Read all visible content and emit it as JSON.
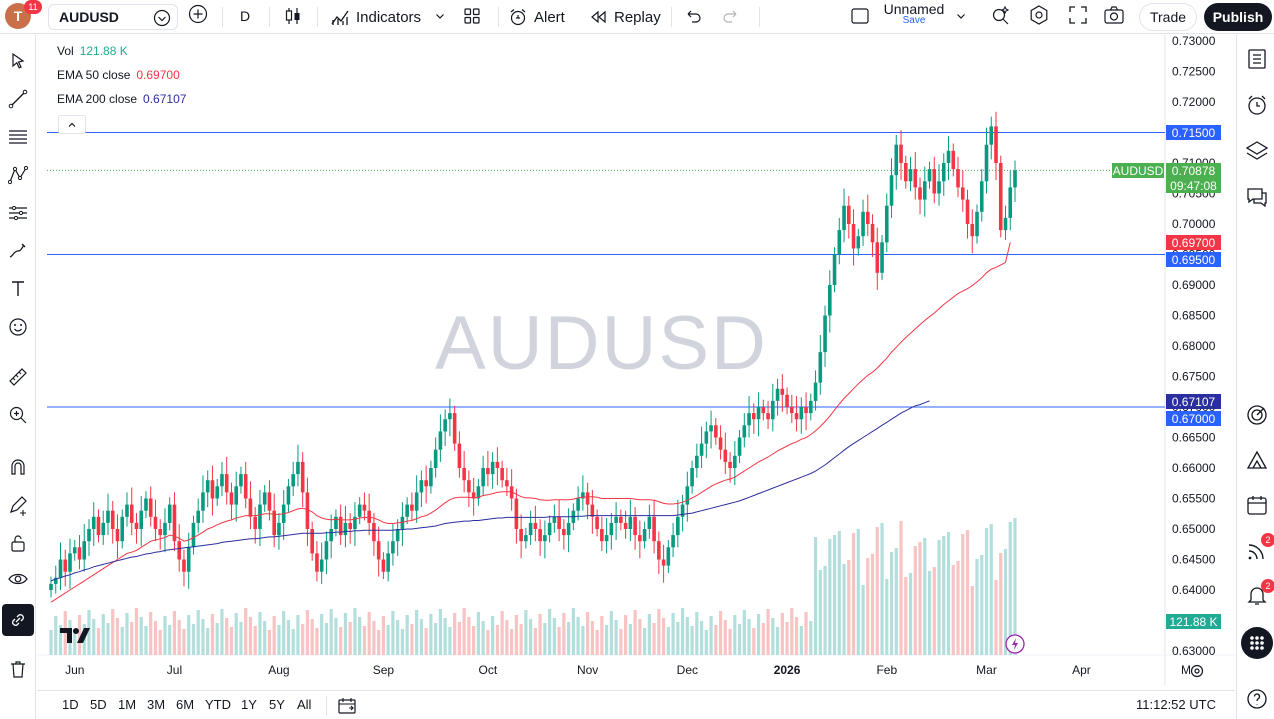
{
  "topbar": {
    "avatar_letter": "T",
    "avatar_badge": "11",
    "symbol": "AUDUSD",
    "interval": "D",
    "indicators_label": "Indicators",
    "alert_label": "Alert",
    "replay_label": "Replay",
    "layout_name": "Unnamed",
    "layout_save": "Save",
    "trade_label": "Trade",
    "publish_label": "Publish"
  },
  "legend": {
    "vol_label": "Vol",
    "vol_value": "121.88 K",
    "ema50_label": "EMA 50 close",
    "ema50_value": "0.69700",
    "ema200_label": "EMA 200 close",
    "ema200_value": "0.67107"
  },
  "watermark": "AUDUSD",
  "price_labels": {
    "symbol_tag": "AUDUSD",
    "last": "0.70878",
    "countdown": "09:47:08",
    "line_top": "0.71500",
    "ema50": "0.69700",
    "line_mid": "0.69500",
    "ema200": "0.67107",
    "line_low": "0.67000",
    "volume": "121.88 K"
  },
  "right_badges": {
    "news": "2",
    "alerts": "2"
  },
  "bottombar": {
    "ranges": [
      "1D",
      "5D",
      "1M",
      "3M",
      "6M",
      "YTD",
      "1Y",
      "5Y",
      "All"
    ],
    "time": "11:12:52 UTC"
  },
  "colors": {
    "up": "#089981",
    "down": "#f23645",
    "ema50": "#f23645",
    "ema200": "#2a2e9e",
    "hline": "#2962ff",
    "vol_up": "#b2dfdb",
    "vol_down": "#f7c3c3"
  },
  "chart_data": {
    "type": "candlestick",
    "x_tick_labels": [
      "Jun",
      "Jul",
      "Aug",
      "Sep",
      "Oct",
      "Nov",
      "Dec",
      "2026",
      "Feb",
      "Mar",
      "Apr",
      "M"
    ],
    "y_tick_labels": [
      "0.73000",
      "0.72500",
      "0.72000",
      "0.71500",
      "0.71000",
      "0.70500",
      "0.70000",
      "0.69500",
      "0.69000",
      "0.68500",
      "0.68000",
      "0.67500",
      "0.67000",
      "0.66500",
      "0.66000",
      "0.65500",
      "0.65000",
      "0.64500",
      "0.64000",
      "0.63500",
      "0.63000"
    ],
    "ylim": [
      0.63,
      0.73
    ],
    "horizontal_lines": [
      0.715,
      0.695,
      0.67
    ],
    "close_series": [
      0.641,
      0.642,
      0.645,
      0.643,
      0.646,
      0.647,
      0.645,
      0.648,
      0.65,
      0.652,
      0.649,
      0.651,
      0.653,
      0.65,
      0.648,
      0.652,
      0.654,
      0.651,
      0.65,
      0.653,
      0.655,
      0.652,
      0.65,
      0.649,
      0.651,
      0.654,
      0.648,
      0.645,
      0.643,
      0.647,
      0.651,
      0.653,
      0.656,
      0.658,
      0.655,
      0.657,
      0.659,
      0.656,
      0.654,
      0.657,
      0.659,
      0.655,
      0.652,
      0.65,
      0.654,
      0.656,
      0.653,
      0.649,
      0.651,
      0.654,
      0.657,
      0.659,
      0.661,
      0.656,
      0.65,
      0.646,
      0.643,
      0.645,
      0.648,
      0.65,
      0.652,
      0.649,
      0.651,
      0.65,
      0.652,
      0.654,
      0.653,
      0.651,
      0.648,
      0.645,
      0.643,
      0.646,
      0.648,
      0.65,
      0.652,
      0.654,
      0.653,
      0.656,
      0.658,
      0.657,
      0.66,
      0.663,
      0.666,
      0.668,
      0.669,
      0.664,
      0.66,
      0.658,
      0.656,
      0.655,
      0.657,
      0.66,
      0.659,
      0.661,
      0.66,
      0.658,
      0.657,
      0.655,
      0.65,
      0.648,
      0.649,
      0.651,
      0.65,
      0.648,
      0.649,
      0.651,
      0.652,
      0.65,
      0.649,
      0.651,
      0.653,
      0.655,
      0.656,
      0.654,
      0.652,
      0.65,
      0.648,
      0.649,
      0.651,
      0.652,
      0.651,
      0.65,
      0.652,
      0.649,
      0.648,
      0.65,
      0.652,
      0.648,
      0.645,
      0.644,
      0.647,
      0.649,
      0.652,
      0.654,
      0.657,
      0.66,
      0.662,
      0.664,
      0.666,
      0.667,
      0.665,
      0.663,
      0.661,
      0.66,
      0.662,
      0.665,
      0.667,
      0.669,
      0.668,
      0.67,
      0.669,
      0.668,
      0.671,
      0.673,
      0.672,
      0.67,
      0.669,
      0.668,
      0.67,
      0.669,
      0.671,
      0.674,
      0.679,
      0.685,
      0.69,
      0.695,
      0.699,
      0.703,
      0.7,
      0.696,
      0.698,
      0.702,
      0.7,
      0.697,
      0.692,
      0.697,
      0.703,
      0.708,
      0.713,
      0.71,
      0.707,
      0.709,
      0.706,
      0.704,
      0.707,
      0.709,
      0.705,
      0.707,
      0.71,
      0.712,
      0.709,
      0.706,
      0.704,
      0.7,
      0.698,
      0.702,
      0.707,
      0.713,
      0.716,
      0.71,
      0.699,
      0.701,
      0.706,
      0.7088
    ],
    "ema50_series": [
      0.638,
      0.6385,
      0.639,
      0.6395,
      0.64,
      0.6405,
      0.641,
      0.6415,
      0.642,
      0.6425,
      0.643,
      0.6435,
      0.644,
      0.6445,
      0.645,
      0.6455,
      0.646,
      0.6462,
      0.6465,
      0.647,
      0.6475,
      0.648,
      0.6482,
      0.6484,
      0.6486,
      0.649,
      0.6488,
      0.6485,
      0.648,
      0.6482,
      0.6486,
      0.649,
      0.6495,
      0.65,
      0.6503,
      0.6507,
      0.651,
      0.6513,
      0.6515,
      0.6518,
      0.652,
      0.6522,
      0.6522,
      0.6522,
      0.6523,
      0.6525,
      0.6525,
      0.6524,
      0.6524,
      0.6525,
      0.6527,
      0.653,
      0.6533,
      0.6534,
      0.6532,
      0.6528,
      0.6522,
      0.6518,
      0.6516,
      0.6515,
      0.6516,
      0.6515,
      0.6515,
      0.6515,
      0.6516,
      0.6518,
      0.6519,
      0.6519,
      0.6518,
      0.6515,
      0.6511,
      0.6509,
      0.6509,
      0.651,
      0.6511,
      0.6513,
      0.6514,
      0.6517,
      0.652,
      0.6522,
      0.6526,
      0.6531,
      0.6537,
      0.6543,
      0.6548,
      0.6551,
      0.6552,
      0.6552,
      0.6552,
      0.6551,
      0.6552,
      0.6555,
      0.6556,
      0.6558,
      0.656,
      0.6561,
      0.6561,
      0.6561,
      0.6557,
      0.6553,
      0.6551,
      0.6551,
      0.655,
      0.6548,
      0.6547,
      0.6547,
      0.6548,
      0.6548,
      0.6548,
      0.6548,
      0.6549,
      0.6551,
      0.6552,
      0.6553,
      0.6553,
      0.6552,
      0.655,
      0.655,
      0.655,
      0.655,
      0.655,
      0.655,
      0.655,
      0.6549,
      0.6548,
      0.6548,
      0.6548,
      0.6547,
      0.6545,
      0.6542,
      0.6541,
      0.6541,
      0.6542,
      0.6544,
      0.6547,
      0.6551,
      0.6555,
      0.656,
      0.6565,
      0.657,
      0.6574,
      0.6577,
      0.658,
      0.6582,
      0.6585,
      0.659,
      0.6595,
      0.66,
      0.6605,
      0.661,
      0.6614,
      0.6618,
      0.6623,
      0.6628,
      0.6632,
      0.6636,
      0.664,
      0.6643,
      0.6647,
      0.665,
      0.6655,
      0.6661,
      0.6668,
      0.6676,
      0.6685,
      0.6695,
      0.6705,
      0.6714,
      0.6722,
      0.673,
      0.6738,
      0.6745,
      0.6752,
      0.6757,
      0.6764,
      0.6772,
      0.678,
      0.679,
      0.6798,
      0.6806,
      0.6814,
      0.6821,
      0.6828,
      0.6835,
      0.6842,
      0.6848,
      0.6854,
      0.6861,
      0.6868,
      0.6874,
      0.688,
      0.6886,
      0.689,
      0.6894,
      0.6899,
      0.6905,
      0.6912,
      0.692,
      0.6926,
      0.6929,
      0.6933,
      0.6937,
      0.697
    ],
    "ema200_series": [
      0.6415,
      0.6418,
      0.642,
      0.6423,
      0.6425,
      0.6428,
      0.643,
      0.6433,
      0.6435,
      0.6438,
      0.644,
      0.6442,
      0.6444,
      0.6446,
      0.6448,
      0.645,
      0.6452,
      0.6454,
      0.6455,
      0.6457,
      0.6459,
      0.646,
      0.6462,
      0.6463,
      0.6465,
      0.6466,
      0.6467,
      0.6468,
      0.6469,
      0.647,
      0.6471,
      0.6472,
      0.6473,
      0.6474,
      0.6475,
      0.6476,
      0.6478,
      0.6479,
      0.648,
      0.6481,
      0.6482,
      0.6483,
      0.6484,
      0.6484,
      0.6485,
      0.6486,
      0.6487,
      0.6487,
      0.6488,
      0.6489,
      0.649,
      0.6491,
      0.6492,
      0.6493,
      0.6493,
      0.6493,
      0.6493,
      0.6493,
      0.6494,
      0.6494,
      0.6495,
      0.6495,
      0.6496,
      0.6496,
      0.6497,
      0.6497,
      0.6498,
      0.6498,
      0.6498,
      0.6498,
      0.6498,
      0.6498,
      0.6498,
      0.6499,
      0.6499,
      0.65,
      0.65,
      0.6501,
      0.6502,
      0.6503,
      0.6504,
      0.6505,
      0.6507,
      0.6509,
      0.651,
      0.6511,
      0.6512,
      0.6513,
      0.6513,
      0.6514,
      0.6514,
      0.6515,
      0.6516,
      0.6517,
      0.6518,
      0.6518,
      0.6519,
      0.6519,
      0.6519,
      0.6519,
      0.6519,
      0.6519,
      0.6519,
      0.6519,
      0.6519,
      0.652,
      0.652,
      0.652,
      0.652,
      0.652,
      0.652,
      0.6521,
      0.6521,
      0.6522,
      0.6522,
      0.6522,
      0.6522,
      0.6522,
      0.6522,
      0.6522,
      0.6522,
      0.6522,
      0.6522,
      0.6522,
      0.6522,
      0.6522,
      0.6522,
      0.6522,
      0.6522,
      0.6522,
      0.6522,
      0.6522,
      0.6523,
      0.6524,
      0.6525,
      0.6526,
      0.6528,
      0.653,
      0.6532,
      0.6534,
      0.6536,
      0.6538,
      0.654,
      0.6542,
      0.6544,
      0.6546,
      0.6549,
      0.6552,
      0.6555,
      0.6558,
      0.6561,
      0.6564,
      0.6567,
      0.657,
      0.6573,
      0.6576,
      0.6579,
      0.6582,
      0.6585,
      0.6588,
      0.6591,
      0.6595,
      0.66,
      0.6605,
      0.6611,
      0.6617,
      0.6623,
      0.6629,
      0.6635,
      0.664,
      0.6645,
      0.665,
      0.6655,
      0.666,
      0.6665,
      0.667,
      0.6675,
      0.668,
      0.6685,
      0.669,
      0.6694,
      0.6698,
      0.6702,
      0.6704,
      0.6707,
      0.671
    ]
  }
}
